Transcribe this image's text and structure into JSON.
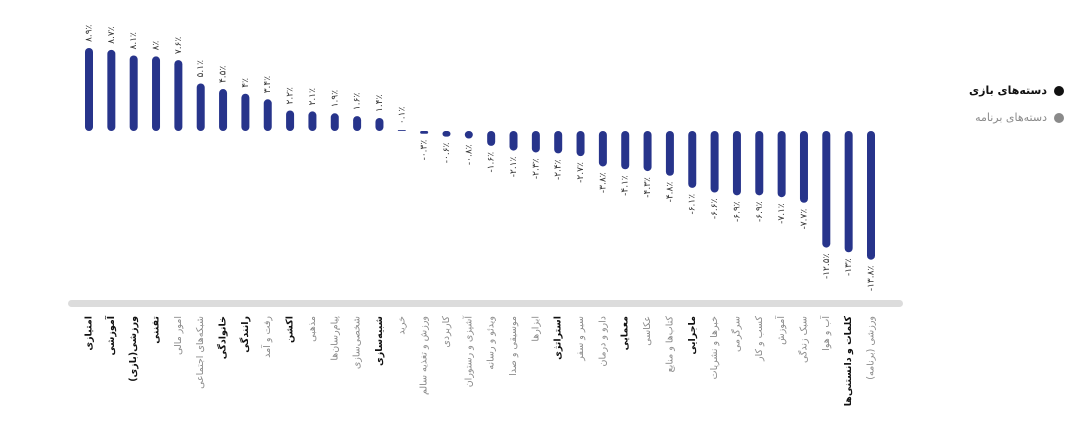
{
  "chart_data": {
    "type": "bar",
    "color": "#27348b",
    "categories": [
      "امتیازی",
      "آموزشی",
      "ورزشی(بازی)",
      "تفننی",
      "امور مالی",
      "شبکه‌های اجتماعی",
      "خانوادگی",
      "رانندگی",
      "رفت و آمد",
      "اکشن",
      "مذهبی",
      "پیام‌رسان‌ها",
      "شخصی‌سازی",
      "شبیه‌سازی",
      "خرید",
      "ورزش و تغذیه سالم",
      "کاربردی",
      "آشپزی و رستوران",
      "ویدئو و رسانه",
      "موسیقی و صدا",
      "ابزارها",
      "استراتژی",
      "سیر و سفر",
      "دارو و درمان",
      "معمایی",
      "عکاسی",
      "کتاب‌ها و منابع",
      "ماجرایی",
      "خبرها و نشریات",
      "سرگرمی",
      "کسب و کار",
      "آموزش",
      "سبک زندگی",
      "آب و هوا",
      "کلمات و دانستنی‌ها",
      "ورزشی (برنامه)"
    ],
    "values": [
      8.9,
      8.7,
      8.1,
      8,
      7.6,
      5.1,
      4.5,
      4,
      3.4,
      2.2,
      2.1,
      1.9,
      1.6,
      1.4,
      0.1,
      -0.3,
      -0.6,
      -0.8,
      -1.6,
      -2.1,
      -2.3,
      -2.4,
      -2.7,
      -3.8,
      -4.1,
      -4.3,
      -4.8,
      -6.1,
      -6.6,
      -6.9,
      -6.9,
      -7.1,
      -7.7,
      -12.5,
      -13,
      -13.8
    ],
    "value_labels": [
      "۸.۹٪",
      "۸.۷٪",
      "۸.۱٪",
      "۸٪",
      "۷.۶٪",
      "۵.۱٪",
      "۴.۵٪",
      "۴٪",
      "۳.۴٪",
      "۲.۲٪",
      "۲.۱٪",
      "۱.۹٪",
      "۱.۶٪",
      "۱.۴٪",
      "۰.۱٪",
      "-۰.۳٪",
      "-۰.۶٪",
      "-۰.۸٪",
      "-۱.۶٪",
      "-۲.۱٪",
      "-۲.۳٪",
      "-۲.۴٪",
      "-۲.۷٪",
      "-۳.۸٪",
      "-۴.۱٪",
      "-۴.۳٪",
      "-۴.۸٪",
      "-۶.۱٪",
      "-۶.۶٪",
      "-۶.۹٪",
      "-۶.۹٪",
      "-۷.۱٪",
      "-۷.۷٪",
      "-۱۲.۵٪",
      "-۱۳٪",
      "-۱۳.۸٪"
    ],
    "category_groups": [
      0,
      0,
      0,
      0,
      1,
      1,
      0,
      0,
      1,
      0,
      1,
      1,
      1,
      0,
      1,
      1,
      1,
      1,
      1,
      1,
      1,
      0,
      1,
      1,
      0,
      1,
      1,
      0,
      1,
      1,
      1,
      1,
      1,
      1,
      0,
      1
    ],
    "legend": [
      {
        "name": "دسته‌های بازی",
        "color": "#111111"
      },
      {
        "name": "دسته‌های برنامه",
        "color": "#8a8a8a"
      }
    ]
  }
}
